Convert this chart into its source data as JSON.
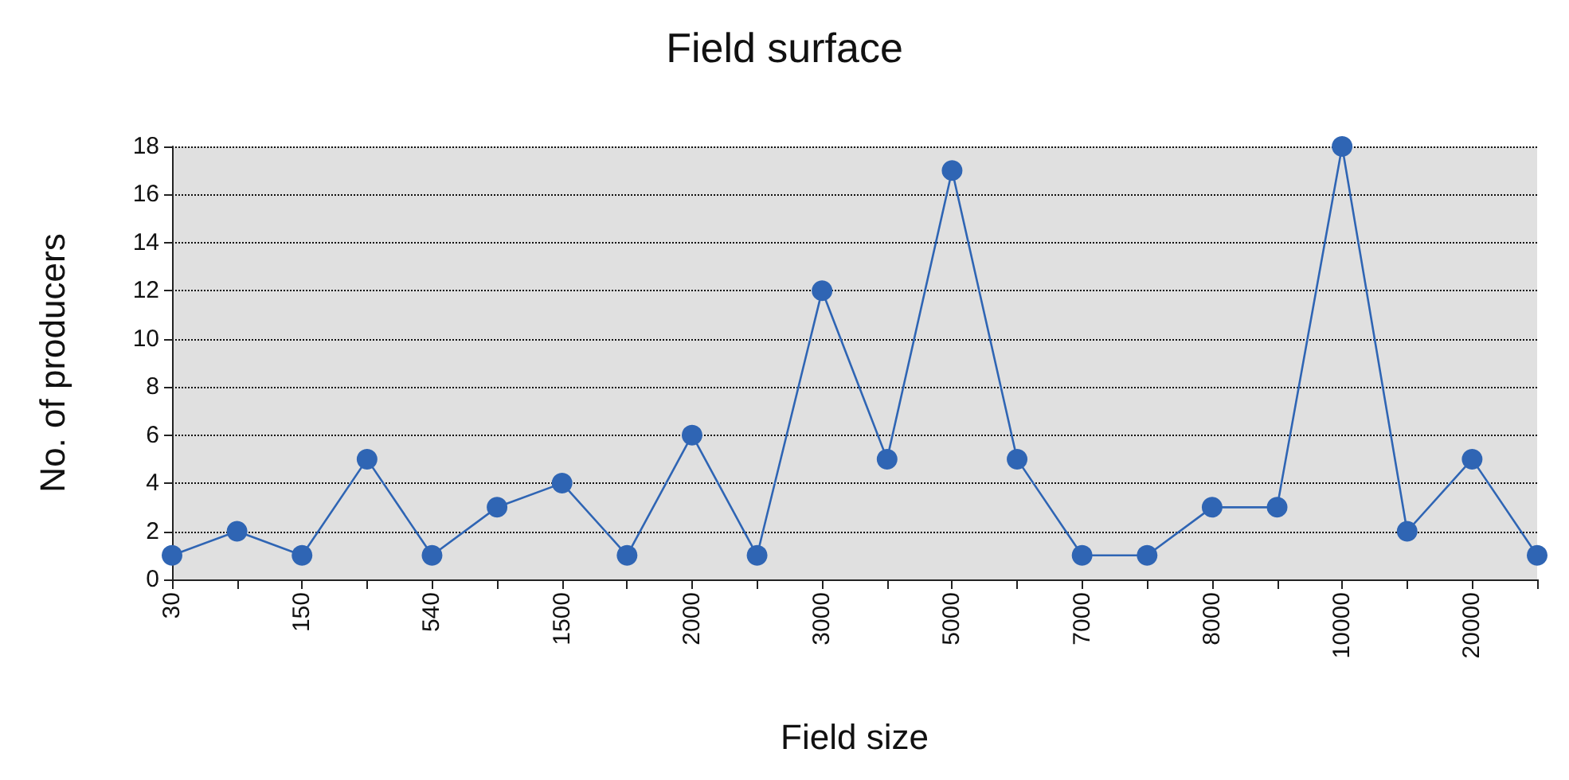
{
  "chart_data": {
    "type": "line",
    "title": "Field surface",
    "xlabel": "Field size",
    "ylabel": "No. of producers",
    "categories": [
      "30",
      null,
      "150",
      null,
      "540",
      null,
      "1500",
      null,
      "2000",
      null,
      "3000",
      null,
      "5000",
      null,
      "7000",
      null,
      "8000",
      null,
      "10000",
      null,
      "20000",
      null
    ],
    "series": [
      {
        "color": "#2f65b4",
        "values": [
          1,
          2,
          1,
          5,
          1,
          3,
          4,
          1,
          6,
          1,
          12,
          5,
          17,
          5,
          1,
          1,
          3,
          3,
          18,
          2,
          5,
          1
        ]
      }
    ],
    "ylim": [
      0,
      18
    ],
    "yticks": [
      0,
      2,
      4,
      6,
      8,
      10,
      12,
      14,
      16,
      18
    ],
    "grid": "y",
    "marker": "circle",
    "line_style": "solid"
  }
}
